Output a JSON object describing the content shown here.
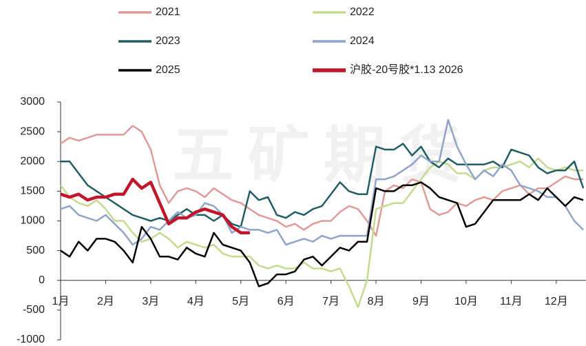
{
  "chart_data": {
    "type": "line",
    "watermark": "五矿期货",
    "x": [
      1,
      1.2,
      1.4,
      1.6,
      1.8,
      2,
      2.2,
      2.4,
      2.6,
      2.8,
      3,
      3.2,
      3.4,
      3.6,
      3.8,
      4,
      4.2,
      4.4,
      4.6,
      4.8,
      5,
      5.2,
      5.4,
      5.6,
      5.8,
      6,
      6.2,
      6.4,
      6.6,
      6.8,
      7,
      7.2,
      7.4,
      7.6,
      7.8,
      8,
      8.2,
      8.4,
      8.6,
      8.8,
      9,
      9.2,
      9.4,
      9.6,
      9.8,
      10,
      10.2,
      10.4,
      10.6,
      10.8,
      11,
      11.2,
      11.4,
      11.6,
      11.8,
      12,
      12.2,
      12.4,
      12.6
    ],
    "xlim": [
      1,
      12.66
    ],
    "xticks": [
      {
        "value": 1,
        "label": "1月"
      },
      {
        "value": 2,
        "label": "2月"
      },
      {
        "value": 3,
        "label": "3月"
      },
      {
        "value": 4,
        "label": "4月"
      },
      {
        "value": 5,
        "label": "5月"
      },
      {
        "value": 6,
        "label": "6月"
      },
      {
        "value": 7,
        "label": "7月"
      },
      {
        "value": 8,
        "label": "8月"
      },
      {
        "value": 9,
        "label": "9月"
      },
      {
        "value": 10,
        "label": "10月"
      },
      {
        "value": 11,
        "label": "11月"
      },
      {
        "value": 12,
        "label": "12月"
      }
    ],
    "ylim": [
      -1000,
      3000
    ],
    "yticks": [
      -1000,
      -500,
      0,
      500,
      1000,
      1500,
      2000,
      2500,
      3000
    ],
    "series": [
      {
        "name": "2021",
        "color": "#e09a96",
        "width": 2.5,
        "values": [
          2300,
          2400,
          2350,
          2400,
          2450,
          2450,
          2450,
          2450,
          2600,
          2500,
          2200,
          1600,
          1300,
          1500,
          1550,
          1500,
          1400,
          1550,
          1450,
          1350,
          1300,
          1200,
          1100,
          1050,
          1000,
          900,
          950,
          850,
          950,
          1000,
          1000,
          1150,
          1250,
          1200,
          1000,
          750,
          1500,
          1600,
          1550,
          1700,
          1650,
          1200,
          1100,
          1150,
          1300,
          1250,
          1350,
          1400,
          1350,
          1500,
          1550,
          1600,
          1450,
          1550,
          1550,
          1650,
          1750,
          1700,
          1700
        ]
      },
      {
        "name": "2022",
        "color": "#c5d98f",
        "width": 2.5,
        "values": [
          1600,
          1400,
          1300,
          1250,
          1350,
          1200,
          1000,
          1000,
          800,
          650,
          700,
          800,
          700,
          550,
          650,
          600,
          550,
          600,
          450,
          400,
          400,
          400,
          250,
          200,
          250,
          200,
          200,
          300,
          200,
          200,
          150,
          200,
          -100,
          -450,
          0,
          1200,
          1250,
          1300,
          1300,
          1500,
          1700,
          1900,
          2000,
          1950,
          1800,
          1800,
          1700,
          1850,
          1900,
          1900,
          1950,
          2000,
          1900,
          2050,
          1900,
          1850,
          1900,
          1850,
          1850
        ]
      },
      {
        "name": "2023",
        "color": "#1f5c63",
        "width": 2.5,
        "values": [
          2000,
          2000,
          1800,
          1600,
          1500,
          1400,
          1300,
          1200,
          1100,
          1050,
          1000,
          1050,
          1000,
          1100,
          1200,
          1100,
          1100,
          1000,
          1100,
          950,
          900,
          1500,
          1350,
          1400,
          1100,
          1050,
          1150,
          1100,
          1200,
          1250,
          1450,
          1650,
          1500,
          1450,
          1450,
          2250,
          2200,
          2200,
          2300,
          2100,
          2250,
          2000,
          1900,
          2050,
          1950,
          1950,
          1950,
          1950,
          2000,
          1900,
          2200,
          2150,
          2100,
          1900,
          1800,
          1850,
          1850,
          2000,
          1550
        ]
      },
      {
        "name": "2024",
        "color": "#8ea4c8",
        "width": 2.5,
        "values": [
          1200,
          1250,
          1100,
          1050,
          1000,
          1100,
          950,
          800,
          600,
          700,
          900,
          850,
          1000,
          1150,
          1050,
          1100,
          1300,
          1250,
          1100,
          800,
          900,
          850,
          850,
          800,
          850,
          600,
          650,
          700,
          650,
          750,
          700,
          750,
          750,
          750,
          750,
          1700,
          1700,
          1750,
          1850,
          1950,
          2100,
          2000,
          2000,
          2700,
          2250,
          1950,
          1700,
          1850,
          1750,
          1950,
          1850,
          1600,
          1550,
          1500,
          1400,
          1400,
          1250,
          1000,
          850
        ]
      },
      {
        "name": "2025",
        "color": "#000000",
        "width": 2.5,
        "values": [
          500,
          400,
          650,
          500,
          700,
          700,
          650,
          500,
          300,
          900,
          700,
          400,
          400,
          350,
          550,
          450,
          400,
          800,
          600,
          550,
          500,
          300,
          -100,
          -50,
          100,
          100,
          150,
          350,
          400,
          250,
          400,
          550,
          500,
          650,
          650,
          1550,
          1500,
          1500,
          1600,
          1600,
          1650,
          1550,
          1400,
          1350,
          1300,
          900,
          950,
          1150,
          1350,
          1350,
          1350,
          1350,
          1450,
          1350,
          1550,
          1400,
          1250,
          1400,
          1350
        ]
      },
      {
        "name": "沪胶-20号胶*1.13 2026",
        "color": "#c0152a",
        "width": 4.5,
        "values": [
          1450,
          1400,
          1450,
          1350,
          1400,
          1400,
          1450,
          1450,
          1700,
          1550,
          1650,
          1300,
          950,
          1050,
          1050,
          1150,
          1200,
          1150,
          1100,
          900,
          800,
          800,
          null,
          null,
          null,
          null,
          null,
          null,
          null,
          null,
          null,
          null,
          null,
          null,
          null,
          null,
          null,
          null,
          null,
          null,
          null,
          null,
          null,
          null,
          null,
          null,
          null,
          null,
          null,
          null,
          null,
          null,
          null,
          null,
          null,
          null,
          null,
          null,
          null
        ]
      }
    ]
  }
}
